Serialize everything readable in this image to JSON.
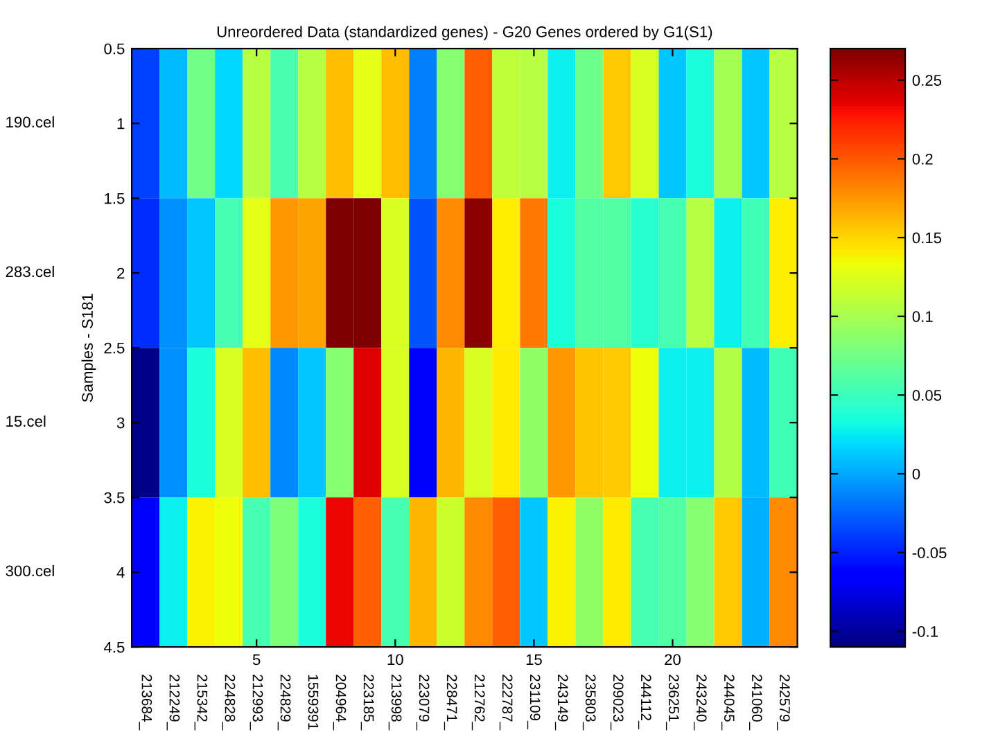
{
  "chart_data": {
    "type": "heatmap",
    "title": "Unreordered Data (standardized genes) - G20 Genes ordered by G1(S1)",
    "ylabel": "Samples - S181",
    "x": [
      1,
      2,
      3,
      4,
      5,
      6,
      7,
      8,
      9,
      10,
      11,
      12,
      13,
      14,
      15,
      16,
      17,
      18,
      19,
      20,
      21,
      22,
      23,
      24
    ],
    "xlim": [
      0.5,
      24.5
    ],
    "xticks": [
      5,
      10,
      15,
      20
    ],
    "ylim": [
      4.5,
      0.5
    ],
    "yticks": [
      0.5,
      1,
      1.5,
      2,
      2.5,
      3,
      3.5,
      4,
      4.5
    ],
    "annotations": [
      "213684_",
      "212249_",
      "215342_",
      "224828_",
      "212993_",
      "224829_",
      "1559391",
      "204964_",
      "223185_",
      "213998_",
      "223079_",
      "228471_",
      "212762_",
      "222787_",
      "231109_",
      "243149_",
      "235803_",
      "209023_",
      "244112_",
      "236251_",
      "243240_",
      "244045_",
      "241060_",
      "242579_",
      "190.cel",
      "283.cel",
      "15.cel",
      "300.cel"
    ],
    "cells": [
      [
        -0.038,
        0.008,
        0.075,
        0.019,
        0.108,
        0.057,
        0.108,
        0.16,
        0.128,
        0.16,
        -0.015,
        0.085,
        0.198,
        0.11,
        0.108,
        0.028,
        0.074,
        0.155,
        0.123,
        0.012,
        0.036,
        0.098,
        0.012,
        0.108
      ],
      [
        -0.045,
        -0.009,
        0.012,
        0.055,
        0.128,
        0.175,
        0.17,
        0.27,
        0.27,
        0.123,
        -0.03,
        0.18,
        0.265,
        0.14,
        0.186,
        0.036,
        0.062,
        0.062,
        0.04,
        0.055,
        0.108,
        0.028,
        0.052,
        0.14
      ],
      [
        -0.106,
        -0.009,
        0.036,
        0.123,
        0.16,
        -0.011,
        0.012,
        0.085,
        0.238,
        0.123,
        -0.062,
        0.163,
        0.123,
        0.142,
        0.09,
        0.175,
        0.157,
        0.155,
        0.132,
        0.028,
        0.028,
        0.104,
        0.008,
        0.052
      ],
      [
        -0.068,
        0.028,
        0.138,
        0.132,
        0.055,
        0.08,
        0.036,
        0.233,
        0.198,
        0.055,
        0.163,
        0.117,
        0.18,
        0.198,
        0.012,
        0.138,
        0.09,
        0.142,
        0.055,
        0.062,
        0.085,
        0.155,
        0.003,
        0.18
      ]
    ],
    "clim": [
      -0.11,
      0.27
    ],
    "cticks": [
      -0.1,
      -0.05,
      0,
      0.05,
      0.1,
      0.15,
      0.2,
      0.25
    ]
  }
}
